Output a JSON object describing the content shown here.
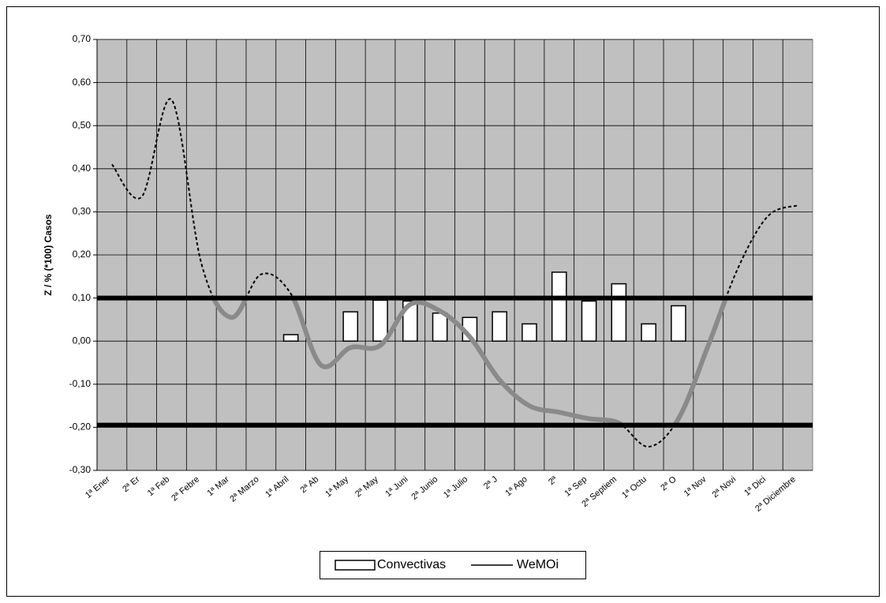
{
  "chart_data": {
    "type": "bar-line",
    "y_label": "Z / % (*100) Casos",
    "categories": [
      "1ª Ener",
      "2ª Er",
      "1ª Feb",
      "2ª Febre",
      "1ª Mar",
      "2ª Marzo",
      "1ª Abril",
      "2ª Ab",
      "1ª May",
      "2ª May",
      "1ª Juni",
      "2ª Junio",
      "1ª Julio",
      "2ª J",
      "1ª Ago",
      "2ª",
      "1ª Sep",
      "2ª Septiem",
      "1ª Octu",
      "2ª O",
      "1ª Nov",
      "2ª Novi",
      "1ª Dici",
      "2ª Diciembre"
    ],
    "series": [
      {
        "name": "Convectivas",
        "type": "bar",
        "color": "#ffffff",
        "values": [
          null,
          null,
          null,
          null,
          null,
          null,
          0.015,
          null,
          0.068,
          0.095,
          0.093,
          0.065,
          0.055,
          0.068,
          0.04,
          0.16,
          0.093,
          0.133,
          0.04,
          0.082,
          null,
          null,
          null,
          null
        ]
      },
      {
        "name": "WeMOi",
        "type": "line",
        "color": "#000000",
        "values": [
          0.41,
          0.335,
          0.56,
          0.18,
          0.055,
          0.155,
          0.11,
          -0.055,
          -0.015,
          -0.01,
          0.085,
          0.07,
          0.01,
          -0.09,
          -0.15,
          -0.165,
          -0.18,
          -0.19,
          -0.245,
          -0.18,
          -0.01,
          0.17,
          0.29,
          0.315
        ]
      }
    ],
    "thresholds": [
      0.1,
      -0.195
    ],
    "ylim": [
      -0.3,
      0.7
    ],
    "yticks": [
      {
        "value": -0.3,
        "label": "-0,30"
      },
      {
        "value": -0.2,
        "label": "-0,20"
      },
      {
        "value": -0.1,
        "label": "-0,10"
      },
      {
        "value": 0,
        "label": "0,00"
      },
      {
        "value": 0.1,
        "label": "0,10"
      },
      {
        "value": 0.2,
        "label": "0,20"
      },
      {
        "value": 0.3,
        "label": "0,30"
      },
      {
        "value": 0.4,
        "label": "0,40"
      },
      {
        "value": 0.5,
        "label": "0,50"
      },
      {
        "value": 0.6,
        "label": "0,60"
      },
      {
        "value": 0.7,
        "label": "0,70"
      }
    ],
    "grid": true
  }
}
